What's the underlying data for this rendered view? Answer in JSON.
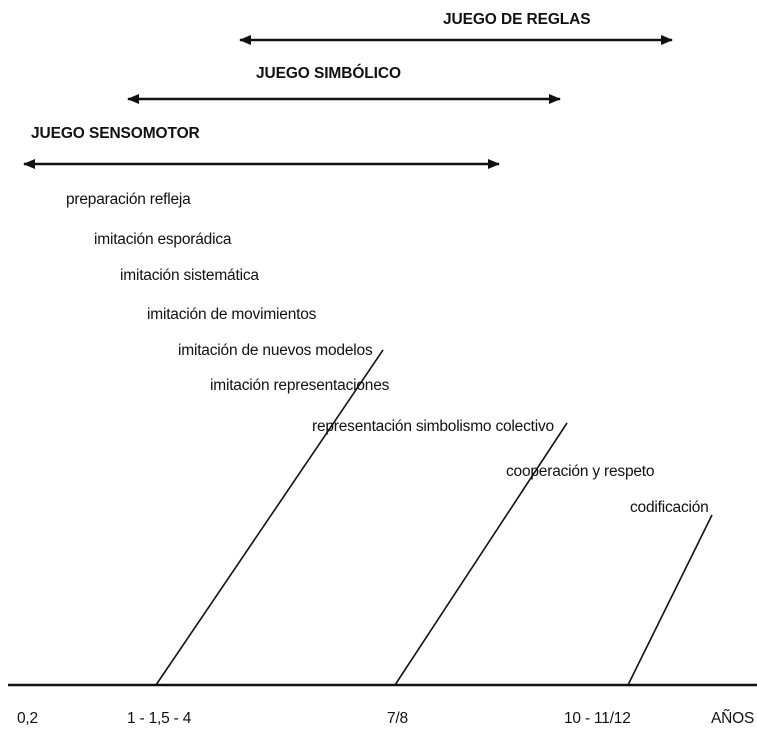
{
  "game_types": [
    {
      "label": "JUEGO DE REGLAS"
    },
    {
      "label": "JUEGO SIMBÓLICO"
    },
    {
      "label": "JUEGO SENSOMOTOR"
    }
  ],
  "stages": [
    {
      "label": "preparación refleja"
    },
    {
      "label": "imitación esporádica"
    },
    {
      "label": "imitación sistemática"
    },
    {
      "label": "imitación de movimientos"
    },
    {
      "label": "imitación de nuevos modelos"
    },
    {
      "label": "imitación representaciones"
    },
    {
      "label": "representación simbolismo colectivo"
    },
    {
      "label": "cooperación y respeto"
    },
    {
      "label": "codificación"
    }
  ],
  "axis": {
    "ticks": [
      "0,2",
      "1 - 1,5 - 4",
      "7/8",
      "10 - 11/12"
    ],
    "unit_label": "AÑOS"
  },
  "colors": {
    "ink": "#111111",
    "background": "#ffffff"
  }
}
